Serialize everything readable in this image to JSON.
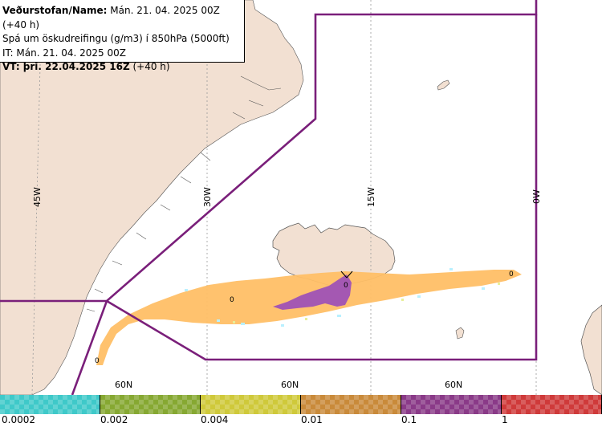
{
  "header": {
    "line1_bold": "Veðurstofan/Name:",
    "line1_rest": " Mán. 21. 04. 2025 00Z (+40 h)",
    "line2": "Spá um öskudreifingu (g/m3) í 850hPa (5000ft)",
    "line3": "IT: Mán. 21. 04. 2025 00Z",
    "line4_bold": "VT: þri. 22.04.2025 16Z",
    "line4_rest": " (+40 h)"
  },
  "grid_labels": {
    "lon_45w": "45W",
    "lon_30w": "30W",
    "lon_15w": "15W",
    "lon_0w": "0W",
    "lat_60n_a": "60N",
    "lat_60n_b": "60N",
    "lat_60n_c": "60N"
  },
  "plume_labels": {
    "zero_a": "0",
    "zero_b": "0",
    "zero_c": "0",
    "zero_d": "0"
  },
  "legend": {
    "ticks": [
      "0.0002",
      "0.002",
      "0.004",
      "0.01",
      "0.1",
      "1"
    ],
    "colors": [
      "#3fc9c9",
      "#86a832",
      "#cfc93a",
      "#c98a3a",
      "#8a3a88",
      "#cf3a3a"
    ]
  },
  "colors": {
    "land": "#f2e0d2",
    "boundary": "#7a1f7a",
    "plume_low": "#ffbf66",
    "plume_high": "#a458b2"
  }
}
